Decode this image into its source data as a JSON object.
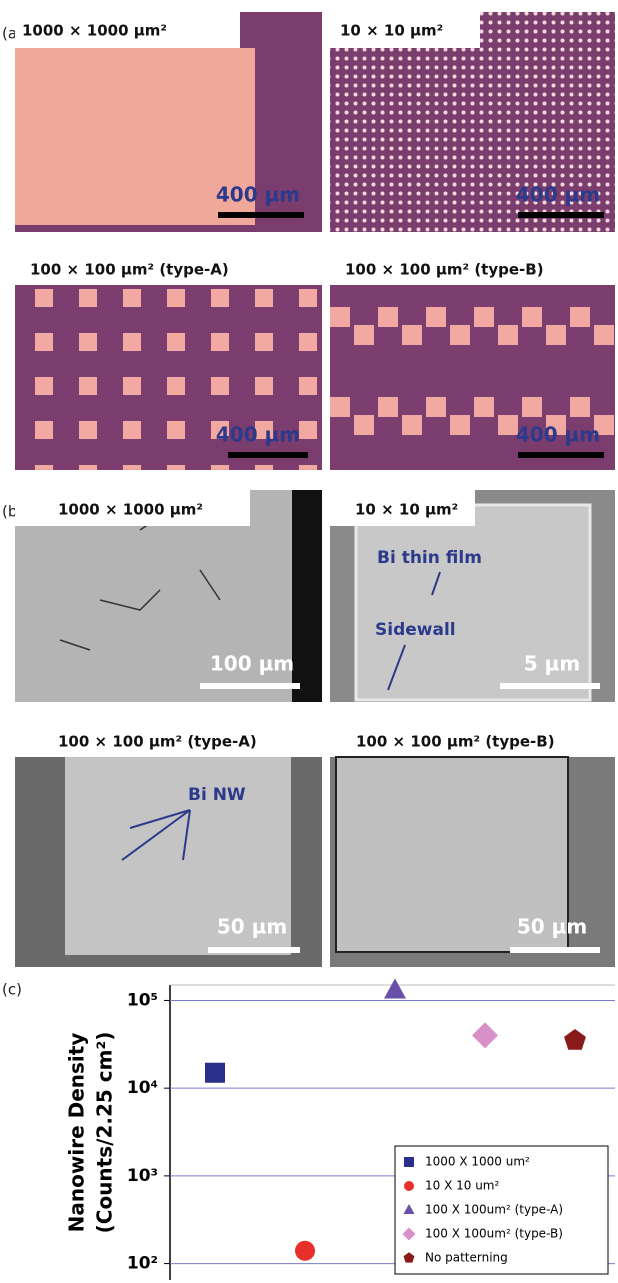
{
  "panel_a": {
    "label": "(a)",
    "images": [
      {
        "title": "1000 × 1000 µm²",
        "scale": "400 µm"
      },
      {
        "title": "10 × 10 µm²",
        "scale": "400 µm"
      },
      {
        "title": "100 × 100 µm² (type-A)",
        "scale": "400 µm"
      },
      {
        "title": "100 × 100 µm² (type-B)",
        "scale": "400 µm"
      }
    ]
  },
  "panel_b": {
    "label": "(b)",
    "images": [
      {
        "title": "1000 × 1000 µm²",
        "scale": "100 µm"
      },
      {
        "title": "10 × 10 µm²",
        "scale": "5 µm",
        "annotations": [
          "Bi thin film",
          "Sidewall"
        ]
      },
      {
        "title": "100 × 100 µm² (type-A)",
        "scale": "50 µm",
        "annotations": [
          "Bi NW"
        ]
      },
      {
        "title": "100 × 100 µm² (type-B)",
        "scale": "50 µm"
      }
    ]
  },
  "panel_c": {
    "label": "(c)"
  },
  "chart_data": {
    "type": "scatter",
    "y_label": [
      "Nanowire Density",
      "(Counts/2.25 cm²)"
    ],
    "categories": [
      null,
      null,
      null,
      null,
      null
    ],
    "series": [
      {
        "name": "1000 X 1000 um²",
        "color": "#2b2f8c",
        "marker": "square",
        "values": [
          15000,
          null,
          null,
          null,
          null
        ]
      },
      {
        "name": "10 X 10 um²",
        "color": "#e8302a",
        "marker": "circle",
        "values": [
          null,
          140,
          null,
          null,
          null
        ]
      },
      {
        "name": "100 X 100um² (type-A)",
        "color": "#6a4fa8",
        "marker": "triangle",
        "values": [
          null,
          null,
          130000,
          null,
          null
        ]
      },
      {
        "name": "100 X 100um² (type-B)",
        "color": "#d890c8",
        "marker": "diamond",
        "values": [
          null,
          null,
          null,
          40000,
          null
        ]
      },
      {
        "name": "No patterning",
        "color": "#8a1a1a",
        "marker": "pentagon",
        "values": [
          null,
          null,
          null,
          null,
          35000
        ]
      }
    ],
    "log_y": true,
    "ylim": [
      65,
      150000
    ],
    "yticks": [
      {
        "value": 100,
        "label": "10²"
      },
      {
        "value": 1000,
        "label": "10³"
      },
      {
        "value": 10000,
        "label": "10⁴"
      },
      {
        "value": 100000,
        "label": "10⁵"
      }
    ],
    "grid": true,
    "legend": "lower right"
  }
}
